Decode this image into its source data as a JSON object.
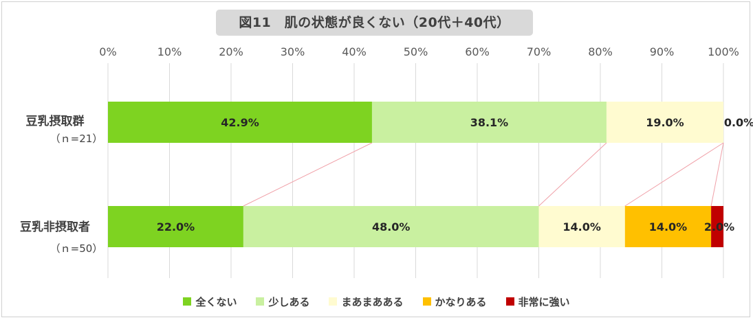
{
  "title": "図11　肌の状態が良くない（20代＋40代）",
  "chart_data": {
    "type": "bar",
    "orientation": "horizontal",
    "stacked": true,
    "xlim": [
      0,
      100
    ],
    "x_ticks": [
      "0%",
      "10%",
      "20%",
      "30%",
      "40%",
      "50%",
      "60%",
      "70%",
      "80%",
      "90%",
      "100%"
    ],
    "grid": true,
    "legend_position": "bottom",
    "categories": [
      {
        "name": "豆乳摂取群",
        "n_label": "（ｎ=21）"
      },
      {
        "name": "豆乳非摂取者",
        "n_label": "（ｎ=50）"
      }
    ],
    "series": [
      {
        "name": "全くない",
        "color": "#7ed321",
        "values": [
          42.9,
          22.0
        ],
        "labels": [
          "42.9%",
          "22.0%"
        ]
      },
      {
        "name": "少しある",
        "color": "#c9f0a0",
        "values": [
          38.1,
          48.0
        ],
        "labels": [
          "38.1%",
          "48.0%"
        ]
      },
      {
        "name": "まあまあある",
        "color": "#fffbd0",
        "values": [
          19.0,
          14.0
        ],
        "labels": [
          "19.0%",
          "14.0%"
        ]
      },
      {
        "name": "かなりある",
        "color": "#ffc000",
        "values": [
          0.0,
          14.0
        ],
        "labels": [
          "0.0%",
          "14.0%"
        ]
      },
      {
        "name": "非常に強い",
        "color": "#c00000",
        "values": [
          0.0,
          2.0
        ],
        "labels": [
          "",
          "2.0%"
        ]
      }
    ],
    "series_lines": true,
    "series_line_color": "#f0a0a8"
  }
}
